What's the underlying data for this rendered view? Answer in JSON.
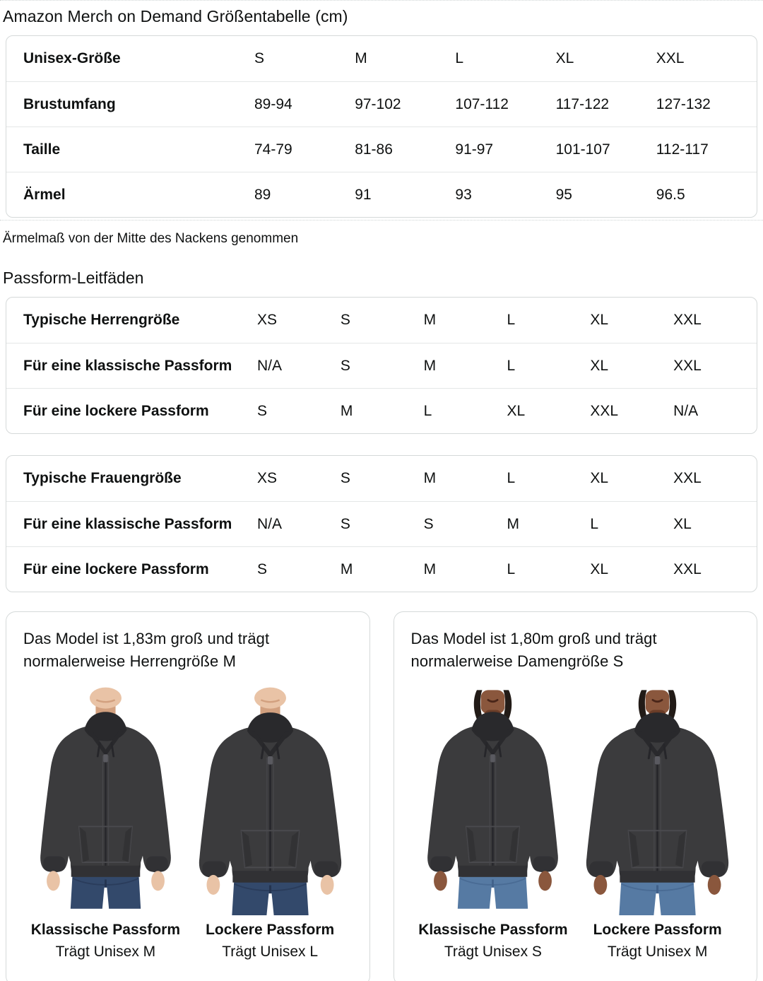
{
  "page": {
    "title": "Amazon Merch on Demand Größentabelle (cm)"
  },
  "size_table": {
    "header": {
      "label": "Unisex-Größe",
      "cells": [
        "S",
        "M",
        "L",
        "XL",
        "XXL"
      ]
    },
    "rows": [
      {
        "label": "Brustumfang",
        "cells": [
          "89-94",
          "97-102",
          "107-112",
          "117-122",
          "127-132"
        ]
      },
      {
        "label": "Taille",
        "cells": [
          "74-79",
          "81-86",
          "91-97",
          "101-107",
          "112-117"
        ]
      },
      {
        "label": "Ärmel",
        "cells": [
          "89",
          "91",
          "93",
          "95",
          "96.5"
        ]
      }
    ],
    "footnote": "Ärmelmaß von der Mitte des Nackens genommen"
  },
  "fit_section": {
    "title": "Passform-Leitfäden",
    "mens_table": {
      "rows": [
        {
          "label": "Typische Herrengröße",
          "cells": [
            "XS",
            "S",
            "M",
            "L",
            "XL",
            "XXL"
          ]
        },
        {
          "label": "Für eine klassische Passform",
          "cells": [
            "N/A",
            "S",
            "M",
            "L",
            "XL",
            "XXL"
          ]
        },
        {
          "label": "Für eine lockere Passform",
          "cells": [
            "S",
            "M",
            "L",
            "XL",
            "XXL",
            "N/A"
          ]
        }
      ]
    },
    "womens_table": {
      "rows": [
        {
          "label": "Typische Frauengröße",
          "cells": [
            "XS",
            "S",
            "M",
            "L",
            "XL",
            "XXL"
          ]
        },
        {
          "label": "Für eine klassische Passform",
          "cells": [
            "N/A",
            "S",
            "S",
            "M",
            "L",
            "XL"
          ]
        },
        {
          "label": "Für eine lockere Passform",
          "cells": [
            "S",
            "M",
            "M",
            "L",
            "XL",
            "XXL"
          ]
        }
      ]
    }
  },
  "cards": [
    {
      "description": "Das Model ist 1,83m groß und trägt normalerweise Herrengröße M",
      "models": [
        {
          "person": "male",
          "fit": "classic",
          "fit_title": "Klassische Passform",
          "fit_sub": "Trägt Unisex M"
        },
        {
          "person": "male",
          "fit": "loose",
          "fit_title": "Lockere Passform",
          "fit_sub": "Trägt Unisex L"
        }
      ]
    },
    {
      "description": "Das Model ist 1,80m groß und trägt normalerweise Damengröße S",
      "models": [
        {
          "person": "female",
          "fit": "classic",
          "fit_title": "Klassische Passform",
          "fit_sub": "Trägt Unisex S"
        },
        {
          "person": "female",
          "fit": "loose",
          "fit_title": "Lockere Passform",
          "fit_sub": "Trägt Unisex M"
        }
      ]
    }
  ],
  "theme": {
    "text": "#0f1111",
    "table_border": "#d5d9d9",
    "row_divider": "#e4e7e7"
  },
  "illustration": {
    "hoodie": "#3b3b3d",
    "hoodie_dark": "#29292c",
    "hoodie_rib": "#313134",
    "stitch": "#4a4a4e",
    "skin_light": "#e9c3a6",
    "skin_light_shadow": "#d2a07f",
    "skin_deep": "#8a573d",
    "skin_deep_shadow": "#6b3d28",
    "hair": "#221b17",
    "jeans_dark": "#33496b",
    "jeans_dark_seam": "#243450",
    "jeans_light": "#567aa3",
    "jeans_light_seam": "#41618a"
  }
}
